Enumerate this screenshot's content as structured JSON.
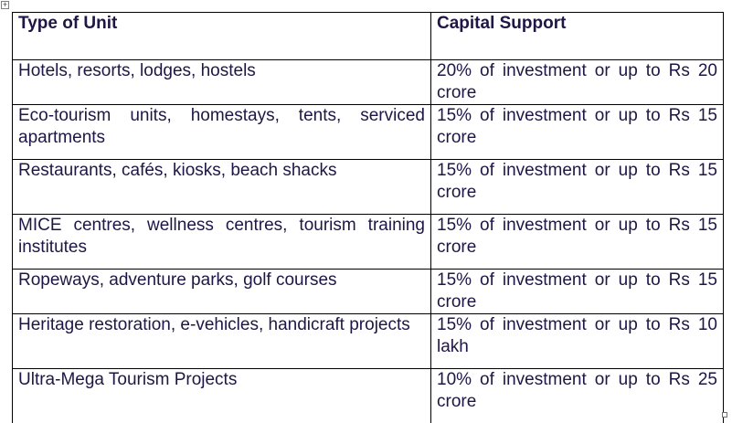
{
  "table": {
    "headers": [
      "Type of Unit",
      "Capital Support"
    ],
    "rows": [
      {
        "type_of_unit": "Hotels, resorts, lodges, hostels",
        "capital_support": "20% of investment or up to Rs 20 crore"
      },
      {
        "type_of_unit": "Eco-tourism units, homestays, tents, serviced apartments",
        "capital_support": "15% of investment or up to Rs 15 crore"
      },
      {
        "type_of_unit": "Restaurants, cafés, kiosks, beach shacks",
        "capital_support": "15% of investment or up to Rs 15 crore"
      },
      {
        "type_of_unit": "MICE centres, wellness centres, tourism training institutes",
        "capital_support": "15% of investment or up to Rs 15 crore"
      },
      {
        "type_of_unit": "Ropeways, adventure parks, golf courses",
        "capital_support": "15% of investment or up to Rs 15 crore"
      },
      {
        "type_of_unit": "Heritage restoration, e-vehicles, handicraft projects",
        "capital_support": "15% of investment or up to Rs 10 lakh"
      },
      {
        "type_of_unit": "Ultra-Mega Tourism Projects",
        "capital_support": "10% of investment or up to Rs 25 crore"
      }
    ]
  },
  "icons": {
    "move_handle": "table-move-handle-icon",
    "resize_handle": "table-resize-handle-icon"
  },
  "colors": {
    "text": "#1f1645",
    "border": "#000000",
    "background": "#ffffff"
  }
}
